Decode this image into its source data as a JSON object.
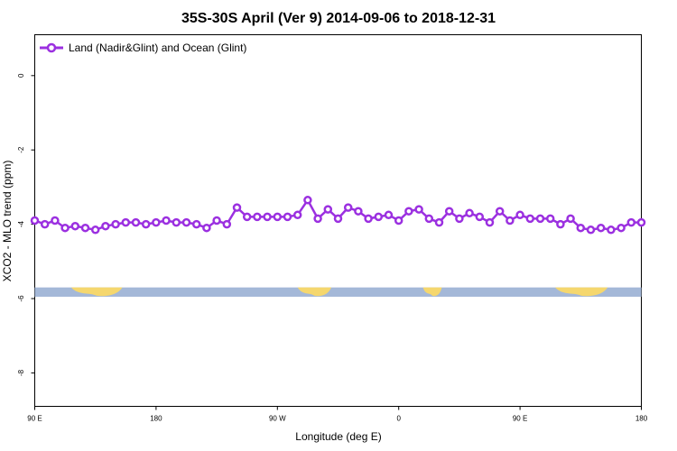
{
  "chart_data": {
    "type": "line",
    "title": "35S-30S April (Ver 9)   2014-09-06 to 2018-12-31",
    "xlabel": "Longitude (deg E)",
    "ylabel": "XCO2 - MLO trend (ppm)",
    "x_ticks": [
      {
        "label": "90 E",
        "value": 90
      },
      {
        "label": "180",
        "value": 180
      },
      {
        "label": "90 W",
        "value": 270
      },
      {
        "label": "0",
        "value": 360
      },
      {
        "label": "90 E",
        "value": 450
      },
      {
        "label": "180",
        "value": 540
      }
    ],
    "y_ticks": [
      0,
      -2,
      -4,
      -6,
      -8
    ],
    "xlim": [
      90,
      540
    ],
    "ylim": [
      -8.9,
      1.1
    ],
    "legend_position": "top-left",
    "series": [
      {
        "name": "Land (Nadir&Glint) and Ocean (Glint)",
        "color": "#9b30e0",
        "x": [
          90,
          97.5,
          105,
          112.5,
          120,
          127.5,
          135,
          142.5,
          150,
          157.5,
          165,
          172.5,
          180,
          187.5,
          195,
          202.5,
          210,
          217.5,
          225,
          232.5,
          240,
          247.5,
          255,
          262.5,
          270,
          277.5,
          285,
          292.5,
          300,
          307.5,
          315,
          322.5,
          330,
          337.5,
          345,
          352.5,
          360,
          367.5,
          375,
          382.5,
          390,
          397.5,
          405,
          412.5,
          420,
          427.5,
          435,
          442.5,
          450,
          457.5,
          465,
          472.5,
          480,
          487.5,
          495,
          502.5,
          510,
          517.5,
          525,
          532.5,
          540
        ],
        "y": [
          -3.9,
          -4.0,
          -3.9,
          -4.1,
          -4.05,
          -4.1,
          -4.15,
          -4.05,
          -4.0,
          -3.95,
          -3.95,
          -4.0,
          -3.95,
          -3.9,
          -3.95,
          -3.95,
          -4.0,
          -4.1,
          -3.9,
          -4.0,
          -3.55,
          -3.8,
          -3.8,
          -3.8,
          -3.8,
          -3.8,
          -3.75,
          -3.35,
          -3.85,
          -3.6,
          -3.85,
          -3.55,
          -3.65,
          -3.85,
          -3.8,
          -3.75,
          -3.9,
          -3.65,
          -3.6,
          -3.85,
          -3.95,
          -3.65,
          -3.85,
          -3.7,
          -3.8,
          -3.95,
          -3.65,
          -3.9,
          -3.75,
          -3.85,
          -3.85,
          -3.85,
          -4.0,
          -3.85,
          -4.1,
          -4.15,
          -4.1,
          -4.15,
          -4.1,
          -3.95,
          -3.95
        ],
        "y_extra_note": ""
      }
    ],
    "legend": [
      "Land (Nadir&Glint) and Ocean (Glint)"
    ],
    "land_mask_colors": {
      "ocean": "#a4b8d8",
      "land": "#f5d76e"
    },
    "land_segments": [
      {
        "from": 117,
        "to": 155
      },
      {
        "from": 285,
        "to": 310
      },
      {
        "from": 378,
        "to": 392
      },
      {
        "from": 476,
        "to": 515
      }
    ],
    "land_mask_y_range": [
      -5.7,
      -5.95
    ],
    "grid": false
  }
}
